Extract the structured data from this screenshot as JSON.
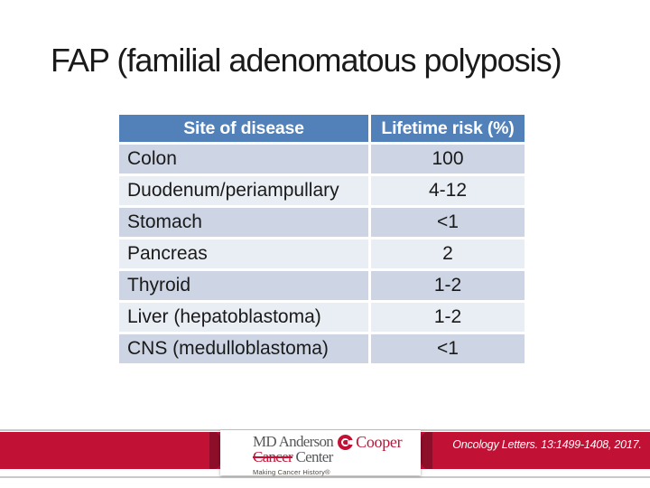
{
  "slide": {
    "title": "FAP (familial adenomatous polyposis)"
  },
  "table": {
    "columns": [
      "Site of disease",
      "Lifetime risk (%)"
    ],
    "rows": [
      {
        "site": "Colon",
        "risk": "100"
      },
      {
        "site": "Duodenum/periampullary",
        "risk": "4-12"
      },
      {
        "site": "Stomach",
        "risk": "<1"
      },
      {
        "site": "Pancreas",
        "risk": "2"
      },
      {
        "site": "Thyroid",
        "risk": "1-2"
      },
      {
        "site": "Liver (hepatoblastoma)",
        "risk": "1-2"
      },
      {
        "site": "CNS (medulloblastoma)",
        "risk": "<1"
      }
    ]
  },
  "chart_data": {
    "type": "table",
    "title": "FAP (familial adenomatous polyposis)",
    "columns": [
      "Site of disease",
      "Lifetime risk (%)"
    ],
    "rows": [
      [
        "Colon",
        "100"
      ],
      [
        "Duodenum/periampullary",
        "4-12"
      ],
      [
        "Stomach",
        "<1"
      ],
      [
        "Pancreas",
        "2"
      ],
      [
        "Thyroid",
        "1-2"
      ],
      [
        "Liver (hepatoblastoma)",
        "1-2"
      ],
      [
        "CNS (medulloblastoma)",
        "<1"
      ]
    ]
  },
  "footer": {
    "logo": {
      "md_anderson": "MD Anderson",
      "cancer": "Cancer",
      "center": "Center",
      "cooper": "Cooper",
      "tagline": "Making Cancer History®"
    },
    "citation": "Oncology Letters. 13:1499-1408, 2017."
  },
  "colors": {
    "title_text": "#1a1a1a",
    "header_bg": "#5181B8",
    "header_text": "#FFFFFF",
    "row_odd_bg": "#CDD4E3",
    "row_even_bg": "#E9EDF4",
    "cell_text": "#1a1a1a",
    "band_red": "#C11236",
    "fold_red": "#8C0E29",
    "line_gray": "#C9C9C9",
    "logo_gray": "#57585A",
    "tagline_color": "#4F463F"
  }
}
